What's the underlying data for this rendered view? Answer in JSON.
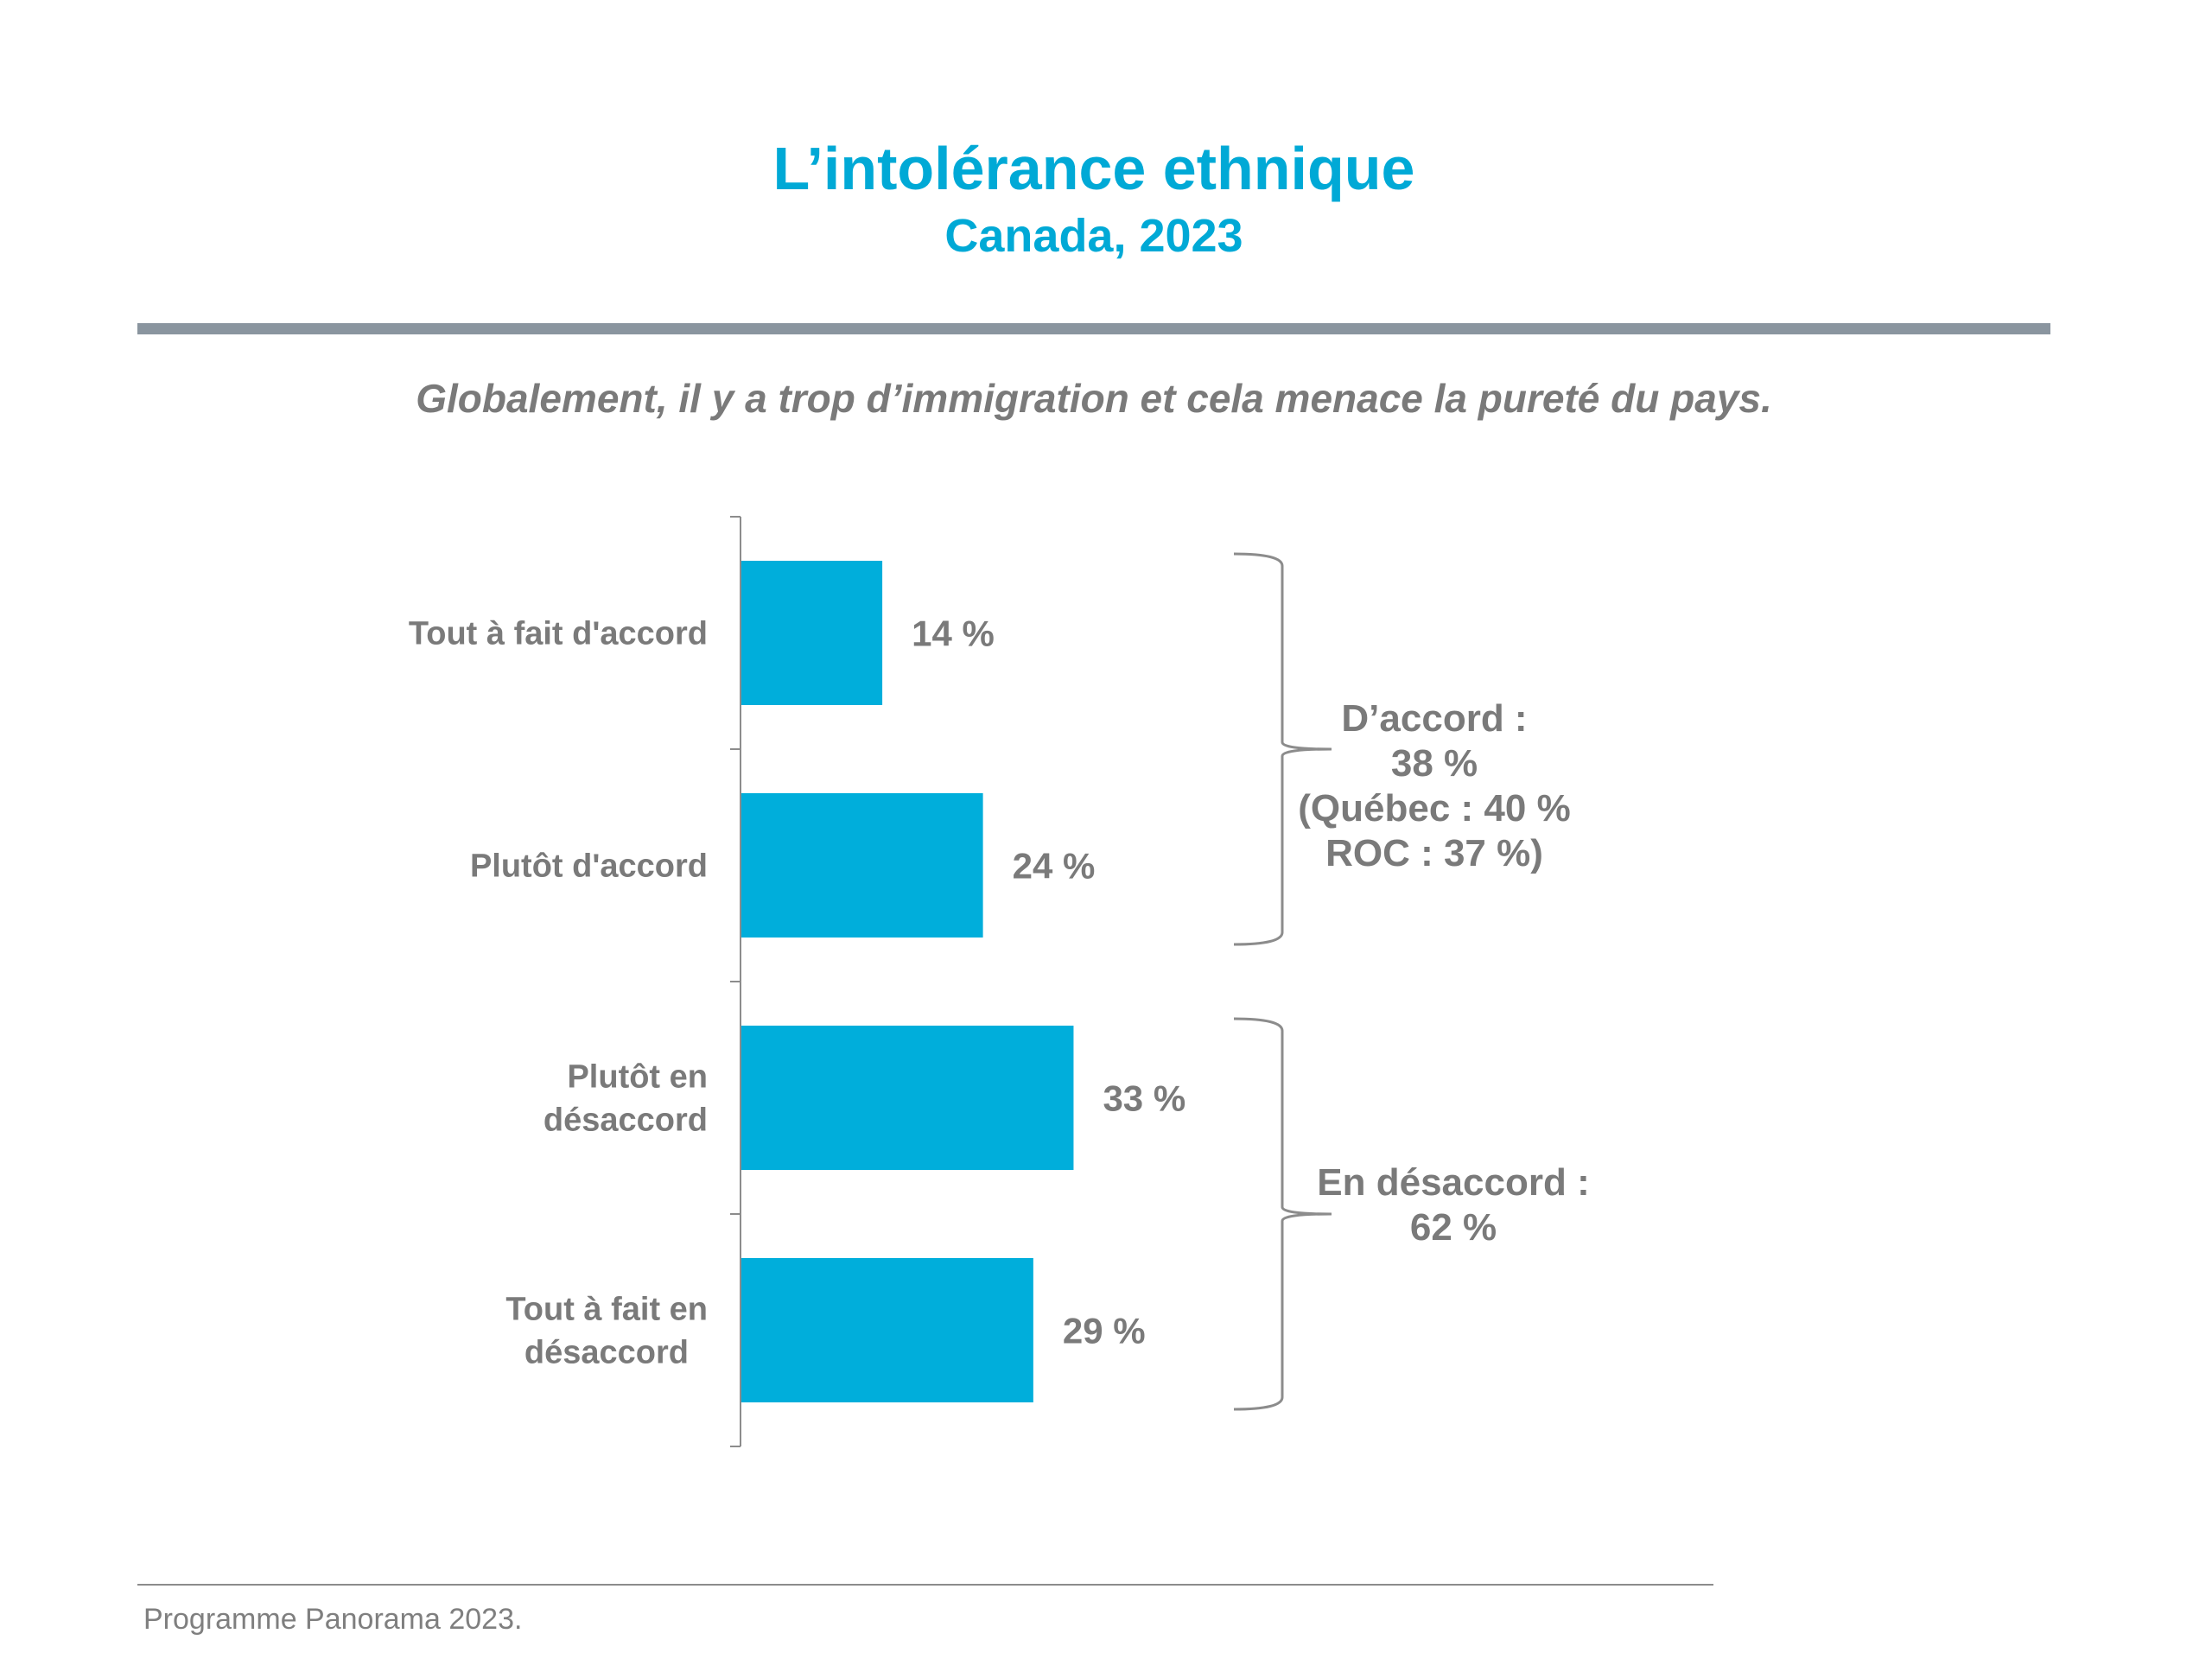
{
  "colors": {
    "title": "#00a9d6",
    "bar": "#00aedb",
    "text": "#7a7a7a",
    "rule": "#8a959f"
  },
  "header": {
    "title": "L’intolérance ethnique",
    "subtitle": "Canada, 2023"
  },
  "question": "Globalement, il y a trop d’immigration et cela menace la pureté du pays.",
  "chart_data": {
    "type": "bar",
    "orientation": "horizontal",
    "title": "Globalement, il y a trop d’immigration et cela menace la pureté du pays.",
    "categories": [
      [
        "Tout à fait d'accord"
      ],
      [
        "Plutôt d'accord"
      ],
      [
        "Plutôt en",
        "désaccord"
      ],
      [
        "Tout à fait en",
        "désaccord"
      ]
    ],
    "values": [
      14,
      24,
      33,
      29
    ],
    "value_labels": [
      "14 %",
      "24 %",
      "33 %",
      "29 %"
    ],
    "xlim": [
      0,
      100
    ],
    "grid": false,
    "groups": [
      {
        "lines": [
          "D’accord :",
          "38 %",
          "(Québec : 40 %",
          "ROC : 37 %)"
        ],
        "members": [
          0,
          1
        ]
      },
      {
        "lines": [
          "En désaccord :",
          "62 %"
        ],
        "members": [
          2,
          3
        ]
      }
    ]
  },
  "footer": {
    "source": "Programme Panorama 2023."
  }
}
